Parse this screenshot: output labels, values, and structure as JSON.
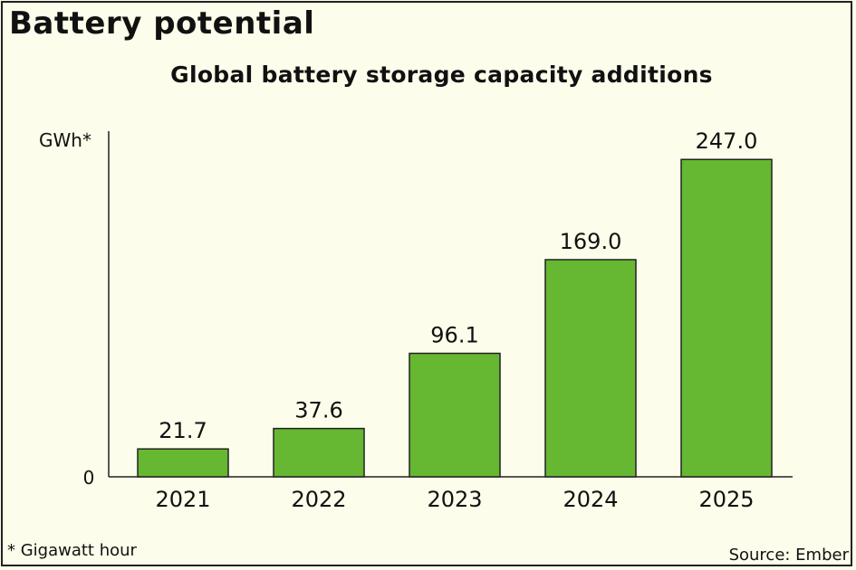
{
  "header": {
    "title": "Battery potential",
    "footnote": "* Gigawatt hour",
    "source": "Source: Ember"
  },
  "chart_data": {
    "type": "bar",
    "title": "Global battery storage capacity additions",
    "ylabel": "GWh*",
    "xlabel": "",
    "categories": [
      "2021",
      "2022",
      "2023",
      "2024",
      "2025"
    ],
    "values": [
      21.7,
      37.6,
      96.1,
      169.0,
      247.0
    ],
    "data_labels": [
      "21.7",
      "37.6",
      "96.1",
      "169.0",
      "247.0"
    ],
    "y_ticks": [
      "0"
    ],
    "ylim": [
      0,
      269
    ],
    "grid": false,
    "bar_color": "#66b832",
    "background_color": "#fdfdeb"
  }
}
